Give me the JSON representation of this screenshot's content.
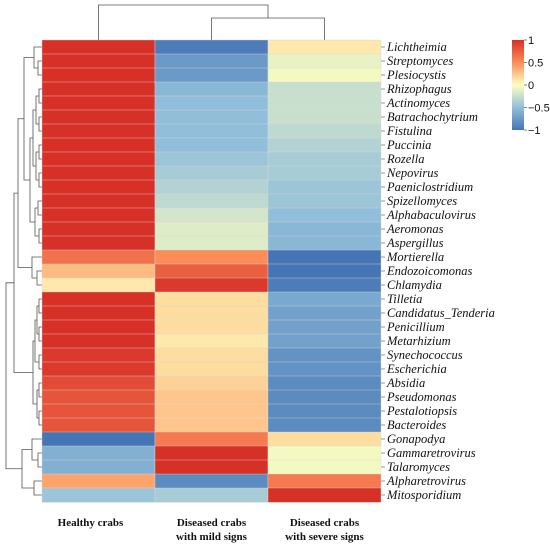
{
  "chart_data": {
    "type": "heatmap",
    "columns": [
      "Healthy crabs",
      "Diseased crabs\nwith mild signs",
      "Diseased crabs\nwith severe signs"
    ],
    "rows": [
      "Lichtheimia",
      "Streptomyces",
      "Plesiocystis",
      "Rhizophagus",
      "Actinomyces",
      "Batrachochytrium",
      "Fistulina",
      "Puccinia",
      "Rozella",
      "Nepovirus",
      "Paeniclostridium",
      "Spizellomyces",
      "Alphabaculovirus",
      "Aeromonas",
      "Aspergillus",
      "Mortierella",
      "Endozoicomonas",
      "Chlamydia",
      "Tilletia",
      "Candidatus_Tenderia",
      "Penicillium",
      "Metarhizium",
      "Synechococcus",
      "Escherichia",
      "Absidia",
      "Pseudomonas",
      "Pestalotiopsis",
      "Bacteroides",
      "Gonapodya",
      "Gammaretrovirus",
      "Talaromyces",
      "Alpharetrovirus",
      "Mitosporidium"
    ],
    "values": [
      [
        1.0,
        -0.95,
        0.1
      ],
      [
        1.0,
        -0.75,
        -0.1
      ],
      [
        1.0,
        -0.75,
        -0.05
      ],
      [
        1.0,
        -0.55,
        -0.25
      ],
      [
        1.0,
        -0.5,
        -0.25
      ],
      [
        1.0,
        -0.5,
        -0.25
      ],
      [
        1.0,
        -0.5,
        -0.3
      ],
      [
        1.0,
        -0.5,
        -0.35
      ],
      [
        1.0,
        -0.45,
        -0.4
      ],
      [
        1.0,
        -0.4,
        -0.4
      ],
      [
        1.0,
        -0.35,
        -0.45
      ],
      [
        1.0,
        -0.3,
        -0.45
      ],
      [
        1.0,
        -0.2,
        -0.5
      ],
      [
        1.0,
        -0.15,
        -0.55
      ],
      [
        1.0,
        -0.15,
        -0.55
      ],
      [
        0.65,
        0.5,
        -1.0
      ],
      [
        0.3,
        0.75,
        -1.0
      ],
      [
        0.1,
        0.95,
        -0.95
      ],
      [
        1.0,
        0.15,
        -0.65
      ],
      [
        1.0,
        0.15,
        -0.7
      ],
      [
        1.0,
        0.15,
        -0.7
      ],
      [
        1.0,
        0.1,
        -0.7
      ],
      [
        0.95,
        0.15,
        -0.8
      ],
      [
        0.95,
        0.15,
        -0.8
      ],
      [
        0.85,
        0.2,
        -0.85
      ],
      [
        0.8,
        0.25,
        -0.85
      ],
      [
        0.8,
        0.25,
        -0.85
      ],
      [
        0.8,
        0.25,
        -0.85
      ],
      [
        -1.0,
        0.6,
        0.15
      ],
      [
        -0.6,
        1.0,
        -0.05
      ],
      [
        -0.6,
        1.0,
        -0.05
      ],
      [
        0.4,
        -0.85,
        0.6
      ],
      [
        -0.45,
        -0.4,
        1.0
      ]
    ],
    "colorbar": {
      "ticks": [
        "1",
        "0.5",
        "0",
        "−0.5",
        "−1"
      ],
      "range": [
        -1,
        1
      ],
      "colors": [
        "#d73027",
        "#fee090",
        "#ffffbf",
        "#e0f3f8",
        "#4575b4"
      ]
    }
  }
}
